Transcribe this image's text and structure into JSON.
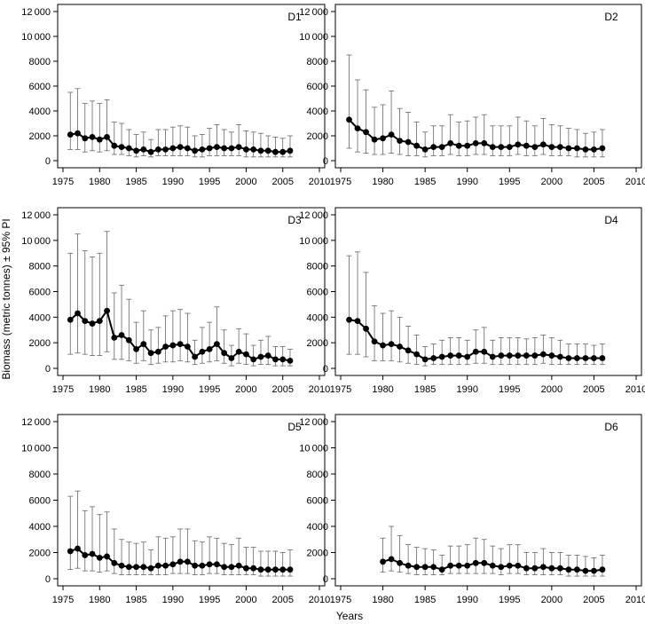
{
  "figure": {
    "xlabel": "Years",
    "ylabel": "Biomass (metric tonnes) ± 95% PI"
  },
  "chart_data": [
    {
      "type": "line",
      "title": "D1",
      "xlim": [
        1975,
        2010
      ],
      "ylim": [
        0,
        12000
      ],
      "xticks": [
        1975,
        1980,
        1985,
        1990,
        1995,
        2000,
        2005,
        2010
      ],
      "yticks": [
        0,
        2000,
        4000,
        6000,
        8000,
        10000,
        12000
      ],
      "ytick_labels": [
        "0",
        "2000",
        "4000",
        "6000",
        "8000",
        "10 000",
        "12 000"
      ],
      "error_bars": "95% PI",
      "grid": false,
      "series": [
        {
          "x": [
            1976,
            1977,
            1978,
            1979,
            1980,
            1981,
            1982,
            1983,
            1984,
            1985,
            1986,
            1987,
            1988,
            1989,
            1990,
            1991,
            1992,
            1993,
            1994,
            1995,
            1996,
            1997,
            1998,
            1999,
            2000,
            2001,
            2002,
            2003,
            2004,
            2005,
            2006
          ],
          "y": [
            2100,
            2200,
            1800,
            1900,
            1700,
            1900,
            1200,
            1100,
            1000,
            800,
            900,
            700,
            900,
            900,
            1000,
            1100,
            1000,
            800,
            900,
            1000,
            1100,
            1000,
            1000,
            1100,
            900,
            900,
            800,
            800,
            700,
            700,
            800
          ],
          "lower": [
            900,
            900,
            700,
            800,
            700,
            800,
            500,
            500,
            400,
            300,
            400,
            300,
            400,
            400,
            400,
            400,
            400,
            300,
            300,
            400,
            400,
            400,
            400,
            400,
            300,
            300,
            300,
            300,
            300,
            300,
            300
          ],
          "upper": [
            5500,
            5800,
            4600,
            4800,
            4600,
            4900,
            3100,
            3000,
            2500,
            2100,
            2300,
            1700,
            2500,
            2500,
            2700,
            2800,
            2700,
            2000,
            2100,
            2600,
            2900,
            2500,
            2300,
            2900,
            2400,
            2300,
            2200,
            2000,
            1900,
            1800,
            2000
          ]
        }
      ]
    },
    {
      "type": "line",
      "title": "D2",
      "xlim": [
        1975,
        2010
      ],
      "ylim": [
        0,
        12000
      ],
      "xticks": [
        1975,
        1980,
        1985,
        1990,
        1995,
        2000,
        2005,
        2010
      ],
      "yticks": [
        0,
        2000,
        4000,
        6000,
        8000,
        10000,
        12000
      ],
      "ytick_labels": [
        "0",
        "2000",
        "4000",
        "6000",
        "8000",
        "10 000",
        "12 000"
      ],
      "error_bars": "95% PI",
      "grid": false,
      "series": [
        {
          "x": [
            1976,
            1977,
            1978,
            1979,
            1980,
            1981,
            1982,
            1983,
            1984,
            1985,
            1986,
            1987,
            1988,
            1989,
            1990,
            1991,
            1992,
            1993,
            1994,
            1995,
            1996,
            1997,
            1998,
            1999,
            2000,
            2001,
            2002,
            2003,
            2004,
            2005,
            2006
          ],
          "y": [
            3300,
            2600,
            2300,
            1700,
            1800,
            2100,
            1600,
            1500,
            1200,
            900,
            1100,
            1100,
            1400,
            1200,
            1200,
            1400,
            1400,
            1100,
            1100,
            1100,
            1300,
            1200,
            1100,
            1300,
            1100,
            1100,
            1000,
            1000,
            900,
            900,
            1000
          ],
          "lower": [
            1000,
            700,
            600,
            500,
            500,
            600,
            500,
            400,
            400,
            300,
            400,
            400,
            500,
            400,
            400,
            500,
            500,
            400,
            400,
            400,
            500,
            400,
            400,
            500,
            400,
            400,
            400,
            300,
            300,
            300,
            300
          ],
          "upper": [
            8500,
            6500,
            5700,
            4300,
            4500,
            5600,
            4200,
            3900,
            3100,
            2300,
            2800,
            2800,
            3700,
            3100,
            3200,
            3500,
            3700,
            2800,
            2800,
            2800,
            3500,
            3200,
            2800,
            3400,
            2900,
            2800,
            2600,
            2500,
            2200,
            2300,
            2500
          ]
        }
      ]
    },
    {
      "type": "line",
      "title": "D3",
      "xlim": [
        1975,
        2010
      ],
      "ylim": [
        0,
        12000
      ],
      "xticks": [
        1975,
        1980,
        1985,
        1990,
        1995,
        2000,
        2005,
        2010
      ],
      "yticks": [
        0,
        2000,
        4000,
        6000,
        8000,
        10000,
        12000
      ],
      "ytick_labels": [
        "0",
        "2000",
        "4000",
        "6000",
        "8000",
        "10 000",
        "12 000"
      ],
      "error_bars": "95% PI",
      "grid": false,
      "series": [
        {
          "x": [
            1976,
            1977,
            1978,
            1979,
            1980,
            1981,
            1982,
            1983,
            1984,
            1985,
            1986,
            1987,
            1988,
            1989,
            1990,
            1991,
            1992,
            1993,
            1994,
            1995,
            1996,
            1997,
            1998,
            1999,
            2000,
            2001,
            2002,
            2003,
            2004,
            2005,
            2006
          ],
          "y": [
            3800,
            4300,
            3700,
            3500,
            3700,
            4500,
            2400,
            2600,
            2200,
            1500,
            1900,
            1200,
            1300,
            1700,
            1800,
            1900,
            1700,
            900,
            1300,
            1500,
            1900,
            1200,
            800,
            1300,
            1100,
            700,
            900,
            1000,
            700,
            700,
            600
          ],
          "lower": [
            1100,
            1200,
            1100,
            1000,
            1000,
            1300,
            700,
            700,
            600,
            400,
            600,
            300,
            400,
            500,
            500,
            600,
            500,
            300,
            400,
            500,
            600,
            400,
            200,
            400,
            300,
            200,
            300,
            300,
            200,
            200,
            200
          ],
          "upper": [
            9000,
            10500,
            9200,
            8700,
            9000,
            10700,
            5900,
            6500,
            5400,
            3600,
            4500,
            3000,
            3200,
            4100,
            4500,
            4600,
            4300,
            2200,
            3200,
            3600,
            4800,
            3000,
            1800,
            3100,
            2700,
            1800,
            2200,
            2500,
            1700,
            1700,
            1500
          ]
        }
      ]
    },
    {
      "type": "line",
      "title": "D4",
      "xlim": [
        1975,
        2010
      ],
      "ylim": [
        0,
        12000
      ],
      "xticks": [
        1975,
        1980,
        1985,
        1990,
        1995,
        2000,
        2005,
        2010
      ],
      "yticks": [
        0,
        2000,
        4000,
        6000,
        8000,
        10000,
        12000
      ],
      "ytick_labels": [
        "0",
        "2000",
        "4000",
        "6000",
        "8000",
        "10 000",
        "12 000"
      ],
      "error_bars": "95% PI",
      "grid": false,
      "series": [
        {
          "x": [
            1976,
            1977,
            1978,
            1979,
            1980,
            1981,
            1982,
            1983,
            1984,
            1985,
            1986,
            1987,
            1988,
            1989,
            1990,
            1991,
            1992,
            1993,
            1994,
            1995,
            1996,
            1997,
            1998,
            1999,
            2000,
            2001,
            2002,
            2003,
            2004,
            2005,
            2006
          ],
          "y": [
            3800,
            3700,
            3100,
            2100,
            1800,
            1900,
            1700,
            1400,
            1100,
            700,
            800,
            900,
            1000,
            1000,
            900,
            1300,
            1300,
            900,
            1000,
            1000,
            1000,
            1000,
            1000,
            1100,
            1000,
            900,
            800,
            800,
            800,
            800,
            800
          ],
          "lower": [
            1100,
            1100,
            900,
            600,
            600,
            600,
            500,
            400,
            300,
            200,
            300,
            300,
            300,
            300,
            300,
            400,
            400,
            300,
            300,
            300,
            300,
            300,
            300,
            400,
            300,
            300,
            300,
            300,
            300,
            300,
            300
          ],
          "upper": [
            8800,
            9100,
            7500,
            4900,
            4300,
            4500,
            4000,
            3300,
            2600,
            1700,
            1900,
            2200,
            2400,
            2400,
            2200,
            3000,
            3200,
            2200,
            2400,
            2400,
            2400,
            2300,
            2400,
            2600,
            2400,
            2200,
            1900,
            1900,
            1900,
            1800,
            1900
          ]
        }
      ]
    },
    {
      "type": "line",
      "title": "D5",
      "xlim": [
        1975,
        2010
      ],
      "ylim": [
        0,
        12000
      ],
      "xticks": [
        1975,
        1980,
        1985,
        1990,
        1995,
        2000,
        2005,
        2010
      ],
      "yticks": [
        0,
        2000,
        4000,
        6000,
        8000,
        10000,
        12000
      ],
      "ytick_labels": [
        "0",
        "2000",
        "4000",
        "6000",
        "8000",
        "10 000",
        "12 000"
      ],
      "error_bars": "95% PI",
      "grid": false,
      "series": [
        {
          "x": [
            1976,
            1977,
            1978,
            1979,
            1980,
            1981,
            1982,
            1983,
            1984,
            1985,
            1986,
            1987,
            1988,
            1989,
            1990,
            1991,
            1992,
            1993,
            1994,
            1995,
            1996,
            1997,
            1998,
            1999,
            2000,
            2001,
            2002,
            2003,
            2004,
            2005,
            2006
          ],
          "y": [
            2100,
            2300,
            1800,
            1900,
            1600,
            1700,
            1200,
            1000,
            900,
            900,
            900,
            800,
            1000,
            1000,
            1100,
            1300,
            1300,
            1000,
            1000,
            1100,
            1100,
            900,
            900,
            1000,
            800,
            800,
            700,
            700,
            700,
            700,
            700
          ],
          "lower": [
            700,
            800,
            600,
            600,
            500,
            600,
            400,
            300,
            300,
            300,
            300,
            300,
            300,
            300,
            400,
            400,
            400,
            300,
            300,
            400,
            400,
            300,
            300,
            300,
            300,
            300,
            200,
            200,
            200,
            200,
            200
          ],
          "upper": [
            6300,
            6700,
            5200,
            5500,
            4900,
            5100,
            3800,
            3000,
            2800,
            2700,
            2800,
            2200,
            3200,
            3100,
            3200,
            3800,
            3800,
            2900,
            2800,
            3200,
            3100,
            2700,
            2600,
            3100,
            2400,
            2400,
            2100,
            2100,
            2100,
            2000,
            2200
          ]
        }
      ]
    },
    {
      "type": "line",
      "title": "D6",
      "xlim": [
        1975,
        2010
      ],
      "ylim": [
        0,
        12000
      ],
      "xticks": [
        1975,
        1980,
        1985,
        1990,
        1995,
        2000,
        2005,
        2010
      ],
      "yticks": [
        0,
        2000,
        4000,
        6000,
        8000,
        10000,
        12000
      ],
      "ytick_labels": [
        "0",
        "2000",
        "4000",
        "6000",
        "8000",
        "10 000",
        "12 000"
      ],
      "error_bars": "95% PI",
      "grid": false,
      "series": [
        {
          "x": [
            1980,
            1981,
            1982,
            1983,
            1984,
            1985,
            1986,
            1987,
            1988,
            1989,
            1990,
            1991,
            1992,
            1993,
            1994,
            1995,
            1996,
            1997,
            1998,
            1999,
            2000,
            2001,
            2002,
            2003,
            2004,
            2005,
            2006
          ],
          "y": [
            1300,
            1500,
            1200,
            1000,
            900,
            900,
            900,
            700,
            1000,
            1000,
            1000,
            1200,
            1200,
            1000,
            900,
            1000,
            1000,
            800,
            800,
            900,
            800,
            800,
            700,
            700,
            600,
            600,
            700
          ],
          "lower": [
            500,
            600,
            500,
            400,
            300,
            300,
            300,
            300,
            400,
            400,
            400,
            400,
            400,
            400,
            300,
            400,
            400,
            300,
            300,
            300,
            300,
            300,
            200,
            200,
            200,
            200,
            200
          ],
          "upper": [
            3100,
            4000,
            3300,
            2600,
            2400,
            2300,
            2200,
            1800,
            2500,
            2500,
            2600,
            3100,
            3000,
            2500,
            2300,
            2600,
            2600,
            2000,
            2000,
            2300,
            2000,
            2000,
            1800,
            1800,
            1700,
            1600,
            1800
          ]
        }
      ]
    }
  ]
}
